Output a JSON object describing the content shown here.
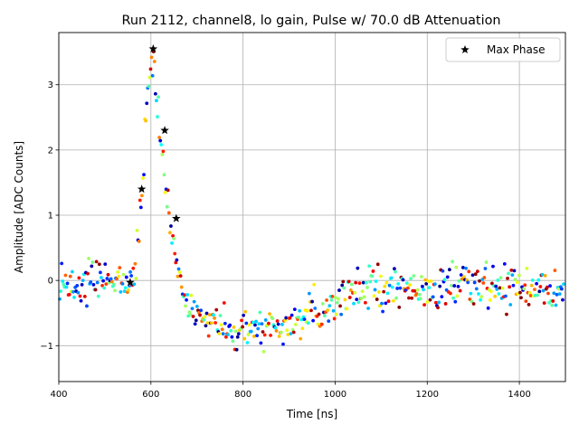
{
  "chart_data": {
    "type": "scatter",
    "title": "Run 2112, channel8, lo gain, Pulse w/ 70.0 dB Attenuation",
    "xlabel": "Time [ns]",
    "ylabel": "Amplitude [ADC Counts]",
    "xlim": [
      400,
      1500
    ],
    "ylim": [
      -1.55,
      3.8
    ],
    "xticks": [
      400,
      600,
      800,
      1000,
      1200,
      1400
    ],
    "yticks": [
      -1,
      0,
      1,
      2,
      3
    ],
    "xtick_labels": [
      "400",
      "600",
      "800",
      "1000",
      "1200",
      "1400"
    ],
    "ytick_labels": [
      "−1",
      "0",
      "1",
      "2",
      "3"
    ],
    "grid": true,
    "legend": {
      "position": "top-right",
      "entries": [
        {
          "label": "Max Phase",
          "marker": "star",
          "color": "#000000"
        }
      ]
    },
    "waveform_model": {
      "description": "Colored dots: pulse samples from multiple phases (jet colormap). Baseline ~0 with noise sd ~0.15.",
      "baseline": 0.0,
      "noise_sd": 0.15,
      "peak_time": 605,
      "peak_amplitude": 3.45,
      "undershoot_min": -0.8,
      "undershoot_time": 880,
      "recovery_time": 1050,
      "tail_level": -0.1
    },
    "max_phase_series": {
      "name": "Max Phase",
      "x": [
        555,
        580,
        605,
        630,
        655
      ],
      "y": [
        -0.03,
        1.4,
        3.55,
        2.3,
        0.95
      ]
    }
  }
}
